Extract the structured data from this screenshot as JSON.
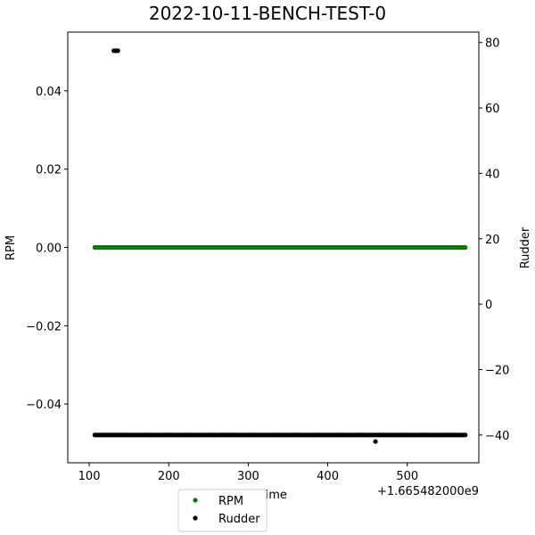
{
  "chart_data": {
    "type": "scatter",
    "title": "2022-10-11-BENCH-TEST-0",
    "xlabel": "Time",
    "x_offset_label": "+1.665482000e9",
    "ylabel_left": "RPM",
    "ylabel_right": "Rudder",
    "xlim": [
      73,
      590
    ],
    "ylim_left": [
      -0.055,
      0.055
    ],
    "ylim_right": [
      -48.5,
      83.2
    ],
    "x_ticks": [
      100,
      200,
      300,
      400,
      500
    ],
    "x_tick_labels": [
      "100",
      "200",
      "300",
      "400",
      "500"
    ],
    "y_left_ticks": [
      -0.04,
      -0.02,
      0.0,
      0.02,
      0.04
    ],
    "y_left_tick_labels": [
      "−0.04",
      "−0.02",
      "0.00",
      "0.02",
      "0.04"
    ],
    "y_right_ticks": [
      -40,
      -20,
      0,
      20,
      40,
      60,
      80
    ],
    "y_right_tick_labels": [
      "−40",
      "−20",
      "0",
      "20",
      "40",
      "60",
      "80"
    ],
    "grid": false,
    "legend_position": "below-left",
    "series": [
      {
        "name": "RPM",
        "axis": "left",
        "color": "#008000",
        "x_range": [
          107,
          573
        ],
        "value": 0.0,
        "points": []
      },
      {
        "name": "Rudder",
        "axis": "right",
        "color": "#000000",
        "x_range": [
          107,
          573
        ],
        "value": -40,
        "points": [
          [
            131,
            77.5
          ],
          [
            134,
            77.5
          ],
          [
            136,
            77.5
          ],
          [
            460,
            -42
          ]
        ]
      }
    ]
  }
}
